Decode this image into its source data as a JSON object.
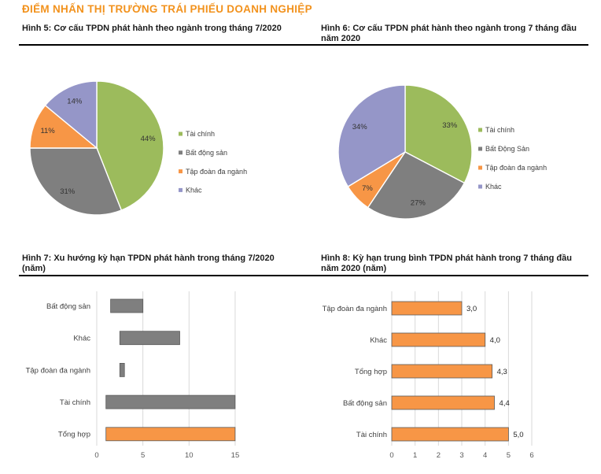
{
  "page": {
    "title": "ĐIỂM NHẤN THỊ TRƯỜNG TRÁI PHIẾU DOANH NGHIỆP",
    "accent_color": "#F2921D"
  },
  "colors": {
    "green": "#9CBB5C",
    "gray": "#7F7F7F",
    "orange": "#F79646",
    "purple": "#9596C8",
    "gridline": "#D9D9D9",
    "tick_text": "#595959",
    "label_text": "#404040",
    "slice_label_text": "#333333",
    "bar_border": "#5A5A5A"
  },
  "chart_data": [
    {
      "id": "fig5",
      "type": "pie",
      "heading": "Hình 5: Cơ cấu TPDN phát hành theo ngành trong tháng 7/2020",
      "title": "Cơ cấu TPDN phát hành theo ngành trong tháng 7/2020",
      "categories": [
        "Tài chính",
        "Bất động sản",
        "Tập đoàn đa ngành",
        "Khác"
      ],
      "values": [
        44,
        31,
        11,
        14
      ],
      "value_labels": [
        "44%",
        "31%",
        "11%",
        "14%"
      ],
      "colors": [
        "#9CBB5C",
        "#7F7F7F",
        "#F79646",
        "#9596C8"
      ],
      "start_angle_deg": 0,
      "direction": "clockwise",
      "legend": {
        "position": "right",
        "entries": [
          "Tài chính",
          "Bất động sản",
          "Tập đoàn đa ngành",
          "Khác"
        ]
      }
    },
    {
      "id": "fig6",
      "type": "pie",
      "heading": "Hình 6: Cơ cấu TPDN phát hành theo ngành trong 7 tháng đầu\nnăm 2020",
      "title": "Cơ cấu TPDN phát hành theo ngành trong 7 tháng đầu năm 2020",
      "categories": [
        "Tài chính",
        "Bất Động Sản",
        "Tập đoàn đa ngành",
        "Khác"
      ],
      "values": [
        33,
        27,
        7,
        34
      ],
      "value_labels": [
        "33%",
        "27%",
        "7%",
        "34%"
      ],
      "colors": [
        "#9CBB5C",
        "#7F7F7F",
        "#F79646",
        "#9596C8"
      ],
      "start_angle_deg": 0,
      "direction": "clockwise",
      "legend": {
        "position": "right",
        "entries": [
          "Tài chính",
          "Bất Động Sản",
          "Tập đoàn đa ngành",
          "Khác"
        ]
      }
    },
    {
      "id": "fig7",
      "type": "bar",
      "subtype": "range",
      "orientation": "horizontal",
      "heading": "Hình 7: Xu hướng kỳ hạn TPDN phát hành trong tháng 7/2020\n(năm)",
      "title": "Xu hướng kỳ hạn TPDN phát hành trong tháng 7/2020 (năm)",
      "categories": [
        "Bất động sản",
        "Khác",
        "Tập đoàn đa ngành",
        "Tài chính",
        "Tổng hợp"
      ],
      "ranges": [
        [
          1.5,
          5
        ],
        [
          2.5,
          9
        ],
        [
          2.5,
          3
        ],
        [
          1,
          15
        ],
        [
          1,
          15
        ]
      ],
      "bar_colors": [
        "#7F7F7F",
        "#7F7F7F",
        "#7F7F7F",
        "#7F7F7F",
        "#F79646"
      ],
      "xticks": [
        0,
        5,
        10,
        15
      ],
      "xlim": [
        0,
        15
      ],
      "grid": true,
      "xlabel": "",
      "ylabel": ""
    },
    {
      "id": "fig8",
      "type": "bar",
      "orientation": "horizontal",
      "heading": "Hình 8: Kỳ hạn trung bình TPDN phát hành trong 7 tháng đầu\nnăm 2020 (năm)",
      "title": "Kỳ hạn trung bình TPDN phát hành trong 7 tháng đầu năm 2020 (năm)",
      "categories": [
        "Tập đoàn đa ngành",
        "Khác",
        "Tổng hợp",
        "Bất động sản",
        "Tài chính"
      ],
      "values": [
        3.0,
        4.0,
        4.3,
        4.4,
        5.0
      ],
      "value_labels": [
        "3,0",
        "4,0",
        "4,3",
        "4,4",
        "5,0"
      ],
      "bar_color": "#F79646",
      "xticks": [
        0,
        1,
        2,
        3,
        4,
        5,
        6
      ],
      "xlim": [
        0,
        6
      ],
      "grid": true,
      "xlabel": "",
      "ylabel": ""
    }
  ]
}
